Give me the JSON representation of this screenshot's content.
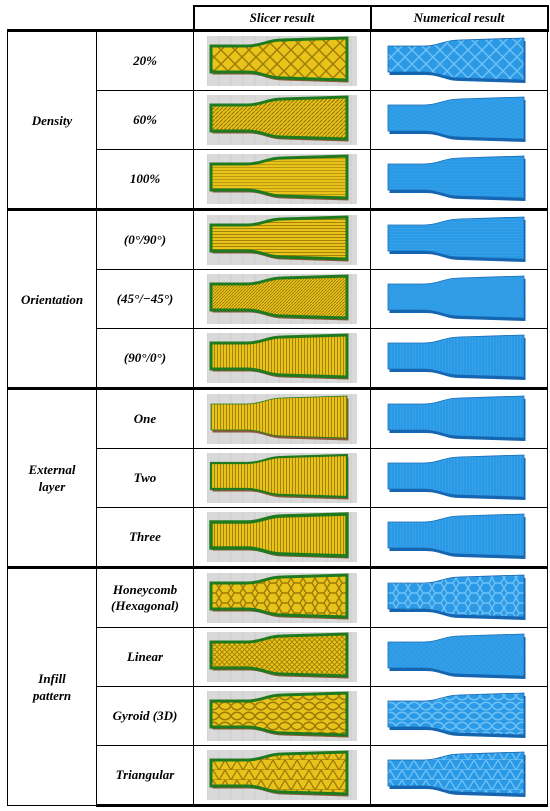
{
  "header": {
    "slicer": "Slicer result",
    "numerical": "Numerical result"
  },
  "colors": {
    "slicer_fill": "#e8c41a",
    "slicer_outline": "#1f7a1f",
    "slicer_base": "#8a5a3a",
    "numerical_fill": "#2b9ae6",
    "numerical_edge": "#1565b0"
  },
  "groups": [
    {
      "label": "Density",
      "rows": [
        {
          "level": "20%",
          "pattern": "sparse-diamond"
        },
        {
          "level": "60%",
          "pattern": "dense-diagonal"
        },
        {
          "level": "100%",
          "pattern": "solid"
        }
      ]
    },
    {
      "label": "Orientation",
      "rows": [
        {
          "level": "(0°/90°)",
          "pattern": "horizontal"
        },
        {
          "level": "(45°/−45°)",
          "pattern": "diagonal"
        },
        {
          "level": "(90°/0°)",
          "pattern": "vertical"
        }
      ]
    },
    {
      "label": "External layer",
      "label_lines": [
        "External",
        "layer"
      ],
      "rows": [
        {
          "level": "One",
          "pattern": "vertical-thin"
        },
        {
          "level": "Two",
          "pattern": "vertical-mid"
        },
        {
          "level": "Three",
          "pattern": "vertical-thick"
        }
      ]
    },
    {
      "label": "Infill pattern",
      "label_lines": [
        "Infill",
        "pattern"
      ],
      "rows": [
        {
          "level": "Honeycomb (Hexagonal)",
          "level_lines": [
            "Honeycomb",
            "(Hexagonal)"
          ],
          "pattern": "honeycomb"
        },
        {
          "level": "Linear",
          "pattern": "linear"
        },
        {
          "level": "Gyroid (3D)",
          "pattern": "gyroid"
        },
        {
          "level": "Triangular",
          "pattern": "triangular"
        }
      ]
    }
  ]
}
